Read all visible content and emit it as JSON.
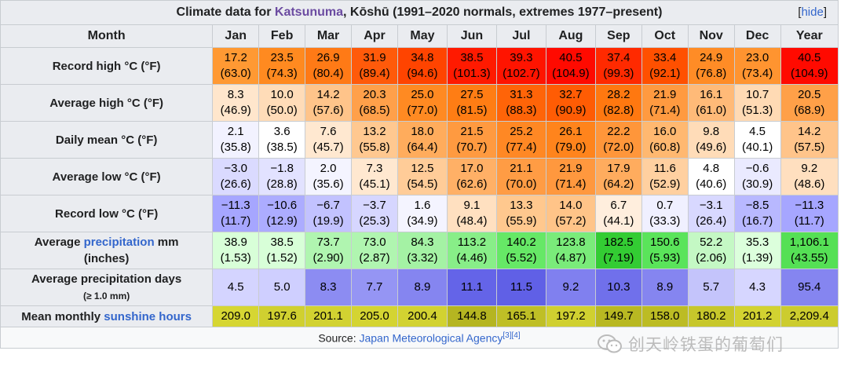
{
  "caption": {
    "prefix": "Climate data for ",
    "place": "Katsunuma",
    "suffix": ", Kōshū (1991–2020 normals, extremes 1977–present)",
    "hide_open": "[",
    "hide_label": "hide",
    "hide_close": "]"
  },
  "header": {
    "month_label": "Month",
    "months": [
      "Jan",
      "Feb",
      "Mar",
      "Apr",
      "May",
      "Jun",
      "Jul",
      "Aug",
      "Sep",
      "Oct",
      "Nov",
      "Dec",
      "Year"
    ]
  },
  "rows": [
    {
      "label": "Record high °C (°F)",
      "cells": [
        {
          "c": "17.2",
          "f": "(63.0)",
          "color": "#ff9933"
        },
        {
          "c": "23.5",
          "f": "(74.3)",
          "color": "#ff8a20"
        },
        {
          "c": "26.9",
          "f": "(80.4)",
          "color": "#ff7a16"
        },
        {
          "c": "31.9",
          "f": "(89.4)",
          "color": "#ff5a0a"
        },
        {
          "c": "34.8",
          "f": "(94.6)",
          "color": "#ff4400"
        },
        {
          "c": "38.5",
          "f": "(101.3)",
          "color": "#ff1a00"
        },
        {
          "c": "39.3",
          "f": "(102.7)",
          "color": "#ff1400"
        },
        {
          "c": "40.5",
          "f": "(104.9)",
          "color": "#ff0a00"
        },
        {
          "c": "37.4",
          "f": "(99.3)",
          "color": "#ff2a00"
        },
        {
          "c": "33.4",
          "f": "(92.1)",
          "color": "#ff5000"
        },
        {
          "c": "24.9",
          "f": "(76.8)",
          "color": "#ff8c26"
        },
        {
          "c": "23.0",
          "f": "(73.4)",
          "color": "#ff9430"
        },
        {
          "c": "40.5",
          "f": "(104.9)",
          "color": "#ff0a00"
        }
      ]
    },
    {
      "label": "Average high °C (°F)",
      "cells": [
        {
          "c": "8.3",
          "f": "(46.9)",
          "color": "#ffe6cc"
        },
        {
          "c": "10.0",
          "f": "(50.0)",
          "color": "#ffdcb8"
        },
        {
          "c": "14.2",
          "f": "(57.6)",
          "color": "#ffc48a"
        },
        {
          "c": "20.3",
          "f": "(68.5)",
          "color": "#ffa04a"
        },
        {
          "c": "25.0",
          "f": "(77.0)",
          "color": "#ff8a22"
        },
        {
          "c": "27.5",
          "f": "(81.5)",
          "color": "#ff7d14"
        },
        {
          "c": "31.3",
          "f": "(88.3)",
          "color": "#ff6408"
        },
        {
          "c": "32.7",
          "f": "(90.9)",
          "color": "#ff5c04"
        },
        {
          "c": "28.2",
          "f": "(82.8)",
          "color": "#ff7810"
        },
        {
          "c": "21.9",
          "f": "(71.4)",
          "color": "#ff9a40"
        },
        {
          "c": "16.1",
          "f": "(61.0)",
          "color": "#ffba78"
        },
        {
          "c": "10.7",
          "f": "(51.3)",
          "color": "#ffdab4"
        },
        {
          "c": "20.5",
          "f": "(68.9)",
          "color": "#ffa048"
        }
      ]
    },
    {
      "label": "Daily mean °C (°F)",
      "cells": [
        {
          "c": "2.1",
          "f": "(35.8)",
          "color": "#f2f2ff"
        },
        {
          "c": "3.6",
          "f": "(38.5)",
          "color": "#ffffff"
        },
        {
          "c": "7.6",
          "f": "(45.7)",
          "color": "#ffe8d0"
        },
        {
          "c": "13.2",
          "f": "(55.8)",
          "color": "#ffc890"
        },
        {
          "c": "18.0",
          "f": "(64.4)",
          "color": "#ffac5c"
        },
        {
          "c": "21.5",
          "f": "(70.7)",
          "color": "#ff9a40"
        },
        {
          "c": "25.2",
          "f": "(77.4)",
          "color": "#ff8824"
        },
        {
          "c": "26.1",
          "f": "(79.0)",
          "color": "#ff841c"
        },
        {
          "c": "22.2",
          "f": "(72.0)",
          "color": "#ff963a"
        },
        {
          "c": "16.0",
          "f": "(60.8)",
          "color": "#ffb870"
        },
        {
          "c": "9.8",
          "f": "(49.6)",
          "color": "#ffdcb8"
        },
        {
          "c": "4.5",
          "f": "(40.1)",
          "color": "#ffffff"
        },
        {
          "c": "14.2",
          "f": "(57.5)",
          "color": "#ffc48a"
        }
      ]
    },
    {
      "label": "Average low °C (°F)",
      "cells": [
        {
          "c": "−3.0",
          "f": "(26.6)",
          "color": "#dadaff"
        },
        {
          "c": "−1.8",
          "f": "(28.8)",
          "color": "#e2e2ff"
        },
        {
          "c": "2.0",
          "f": "(35.6)",
          "color": "#f4f4ff"
        },
        {
          "c": "7.3",
          "f": "(45.1)",
          "color": "#ffe8d0"
        },
        {
          "c": "12.5",
          "f": "(54.5)",
          "color": "#ffcc98"
        },
        {
          "c": "17.0",
          "f": "(62.6)",
          "color": "#ffb066"
        },
        {
          "c": "21.1",
          "f": "(70.0)",
          "color": "#ff9c44"
        },
        {
          "c": "21.9",
          "f": "(71.4)",
          "color": "#ff983e"
        },
        {
          "c": "17.9",
          "f": "(64.2)",
          "color": "#ffac5e"
        },
        {
          "c": "11.6",
          "f": "(52.9)",
          "color": "#ffd0a0"
        },
        {
          "c": "4.8",
          "f": "(40.6)",
          "color": "#ffffff"
        },
        {
          "c": "−0.6",
          "f": "(30.9)",
          "color": "#eaeaff"
        },
        {
          "c": "9.2",
          "f": "(48.6)",
          "color": "#ffdfbf"
        }
      ]
    },
    {
      "label": "Record low °C (°F)",
      "cells": [
        {
          "c": "−11.3",
          "f": "(11.7)",
          "color": "#a6a6ff"
        },
        {
          "c": "−10.6",
          "f": "(12.9)",
          "color": "#acacff"
        },
        {
          "c": "−6.7",
          "f": "(19.9)",
          "color": "#c2c2ff"
        },
        {
          "c": "−3.7",
          "f": "(25.3)",
          "color": "#d6d6ff"
        },
        {
          "c": "1.6",
          "f": "(34.9)",
          "color": "#f4f4ff"
        },
        {
          "c": "9.1",
          "f": "(48.4)",
          "color": "#ffe0c0"
        },
        {
          "c": "13.3",
          "f": "(55.9)",
          "color": "#ffc88e"
        },
        {
          "c": "14.0",
          "f": "(57.2)",
          "color": "#ffc488"
        },
        {
          "c": "6.7",
          "f": "(44.1)",
          "color": "#ffeedd"
        },
        {
          "c": "0.7",
          "f": "(33.3)",
          "color": "#f0f0ff"
        },
        {
          "c": "−3.1",
          "f": "(26.4)",
          "color": "#d8d8ff"
        },
        {
          "c": "−8.5",
          "f": "(16.7)",
          "color": "#b8b8ff"
        },
        {
          "c": "−11.3",
          "f": "(11.7)",
          "color": "#a6a6ff"
        }
      ]
    },
    {
      "label_pre": "Average ",
      "label_link": "precipitation",
      "label_post": " mm",
      "label_line2": "(inches)",
      "cells": [
        {
          "c": "38.9",
          "f": "(1.53)",
          "color": "#d8ffd8"
        },
        {
          "c": "38.5",
          "f": "(1.52)",
          "color": "#d8ffd8"
        },
        {
          "c": "73.7",
          "f": "(2.90)",
          "color": "#b0f5b0"
        },
        {
          "c": "73.0",
          "f": "(2.87)",
          "color": "#b0f5b0"
        },
        {
          "c": "84.3",
          "f": "(3.32)",
          "color": "#a4f2a4"
        },
        {
          "c": "113.2",
          "f": "(4.46)",
          "color": "#88ee88"
        },
        {
          "c": "140.2",
          "f": "(5.52)",
          "color": "#66e866"
        },
        {
          "c": "123.8",
          "f": "(4.87)",
          "color": "#7aeb7a"
        },
        {
          "c": "182.5",
          "f": "(7.19)",
          "color": "#33cc33"
        },
        {
          "c": "150.6",
          "f": "(5.93)",
          "color": "#5ae45a"
        },
        {
          "c": "52.2",
          "f": "(2.06)",
          "color": "#c4f8c4"
        },
        {
          "c": "35.3",
          "f": "(1.39)",
          "color": "#dcffdc"
        },
        {
          "c": "1,106.1",
          "f": "(43.55)",
          "color": "#55e055"
        }
      ]
    },
    {
      "label": "Average precipitation days",
      "label_line2": "(≥ 1.0 mm)",
      "cells": [
        {
          "c": "4.5",
          "color": "#d4d4ff"
        },
        {
          "c": "5.0",
          "color": "#cfcfff"
        },
        {
          "c": "8.3",
          "color": "#8c8cf2"
        },
        {
          "c": "7.7",
          "color": "#9595f4"
        },
        {
          "c": "8.9",
          "color": "#8585f0"
        },
        {
          "c": "11.1",
          "color": "#6464e8"
        },
        {
          "c": "11.5",
          "color": "#6060e6"
        },
        {
          "c": "9.2",
          "color": "#8080ef"
        },
        {
          "c": "10.3",
          "color": "#7070eb"
        },
        {
          "c": "8.9",
          "color": "#8585f0"
        },
        {
          "c": "5.7",
          "color": "#c4c4fb"
        },
        {
          "c": "4.3",
          "color": "#d6d6ff"
        },
        {
          "c": "95.4",
          "color": "#8585f0"
        }
      ]
    },
    {
      "label_pre": "Mean monthly ",
      "label_link": "sunshine hours",
      "cells": [
        {
          "c": "209.0",
          "color": "#d6d633"
        },
        {
          "c": "197.6",
          "color": "#d0d030"
        },
        {
          "c": "201.1",
          "color": "#d2d231"
        },
        {
          "c": "205.0",
          "color": "#d4d432"
        },
        {
          "c": "200.4",
          "color": "#d2d231"
        },
        {
          "c": "144.8",
          "color": "#b5b521"
        },
        {
          "c": "165.1",
          "color": "#bfbf26"
        },
        {
          "c": "197.2",
          "color": "#d0d030"
        },
        {
          "c": "149.7",
          "color": "#b8b822"
        },
        {
          "c": "158.0",
          "color": "#bcbc24"
        },
        {
          "c": "180.2",
          "color": "#c7c72b"
        },
        {
          "c": "201.2",
          "color": "#d2d231"
        },
        {
          "c": "2,209.4",
          "color": "#cccc2e"
        }
      ]
    }
  ],
  "source": {
    "prefix": "Source: ",
    "link": "Japan Meteorological Agency",
    "refs": "[3][4]"
  },
  "watermark": {
    "text": "创天岭铁蛋的葡萄们"
  }
}
